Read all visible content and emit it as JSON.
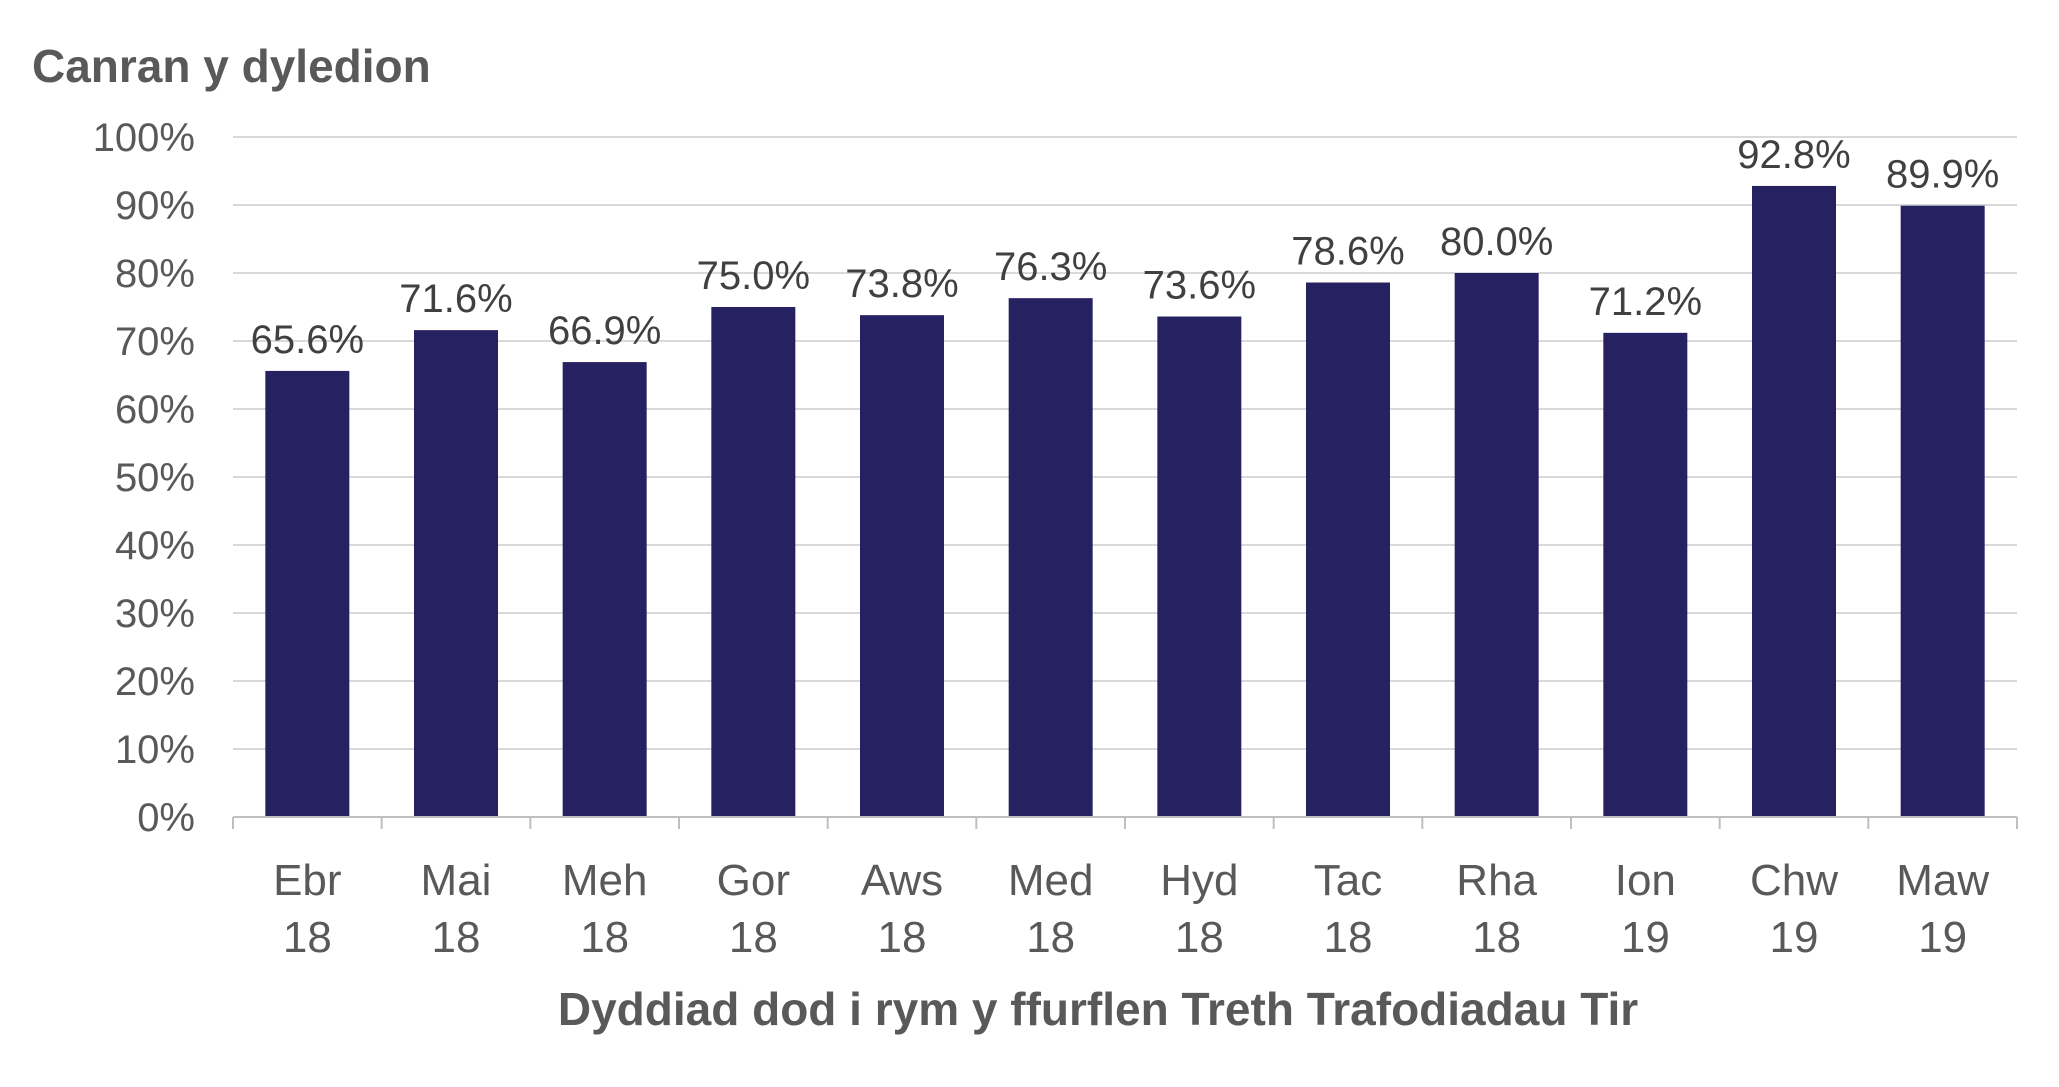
{
  "chart_data": {
    "type": "bar",
    "title": "",
    "ylabel": "Canran y dyledion",
    "xlabel": "Dyddiad dod i rym y ffurflen Treth Trafodiadau Tir",
    "categories": [
      [
        "Ebr",
        "18"
      ],
      [
        "Mai",
        "18"
      ],
      [
        "Meh",
        "18"
      ],
      [
        "Gor",
        "18"
      ],
      [
        "Aws",
        "18"
      ],
      [
        "Med",
        "18"
      ],
      [
        "Hyd",
        "18"
      ],
      [
        "Tac",
        "18"
      ],
      [
        "Rha",
        "18"
      ],
      [
        "Ion",
        "19"
      ],
      [
        "Chw",
        "19"
      ],
      [
        "Maw",
        "19"
      ]
    ],
    "values": [
      65.6,
      71.6,
      66.9,
      75.0,
      73.8,
      76.3,
      73.6,
      78.6,
      80.0,
      71.2,
      92.8,
      89.9
    ],
    "data_labels": [
      "65.6%",
      "71.6%",
      "66.9%",
      "75.0%",
      "73.8%",
      "76.3%",
      "73.6%",
      "78.6%",
      "80.0%",
      "71.2%",
      "92.8%",
      "89.9%"
    ],
    "ylim": [
      0,
      100
    ],
    "y_ticks": [
      0,
      10,
      20,
      30,
      40,
      50,
      60,
      70,
      80,
      90,
      100
    ],
    "y_tick_labels": [
      "0%",
      "10%",
      "20%",
      "30%",
      "40%",
      "50%",
      "60%",
      "70%",
      "80%",
      "90%",
      "100%"
    ],
    "grid": true,
    "legend": "none",
    "colors": {
      "bar": "#262262",
      "grid": "#d9d9d9",
      "axis": "#bfbfbf",
      "text": "#595959",
      "label": "#404040"
    }
  }
}
